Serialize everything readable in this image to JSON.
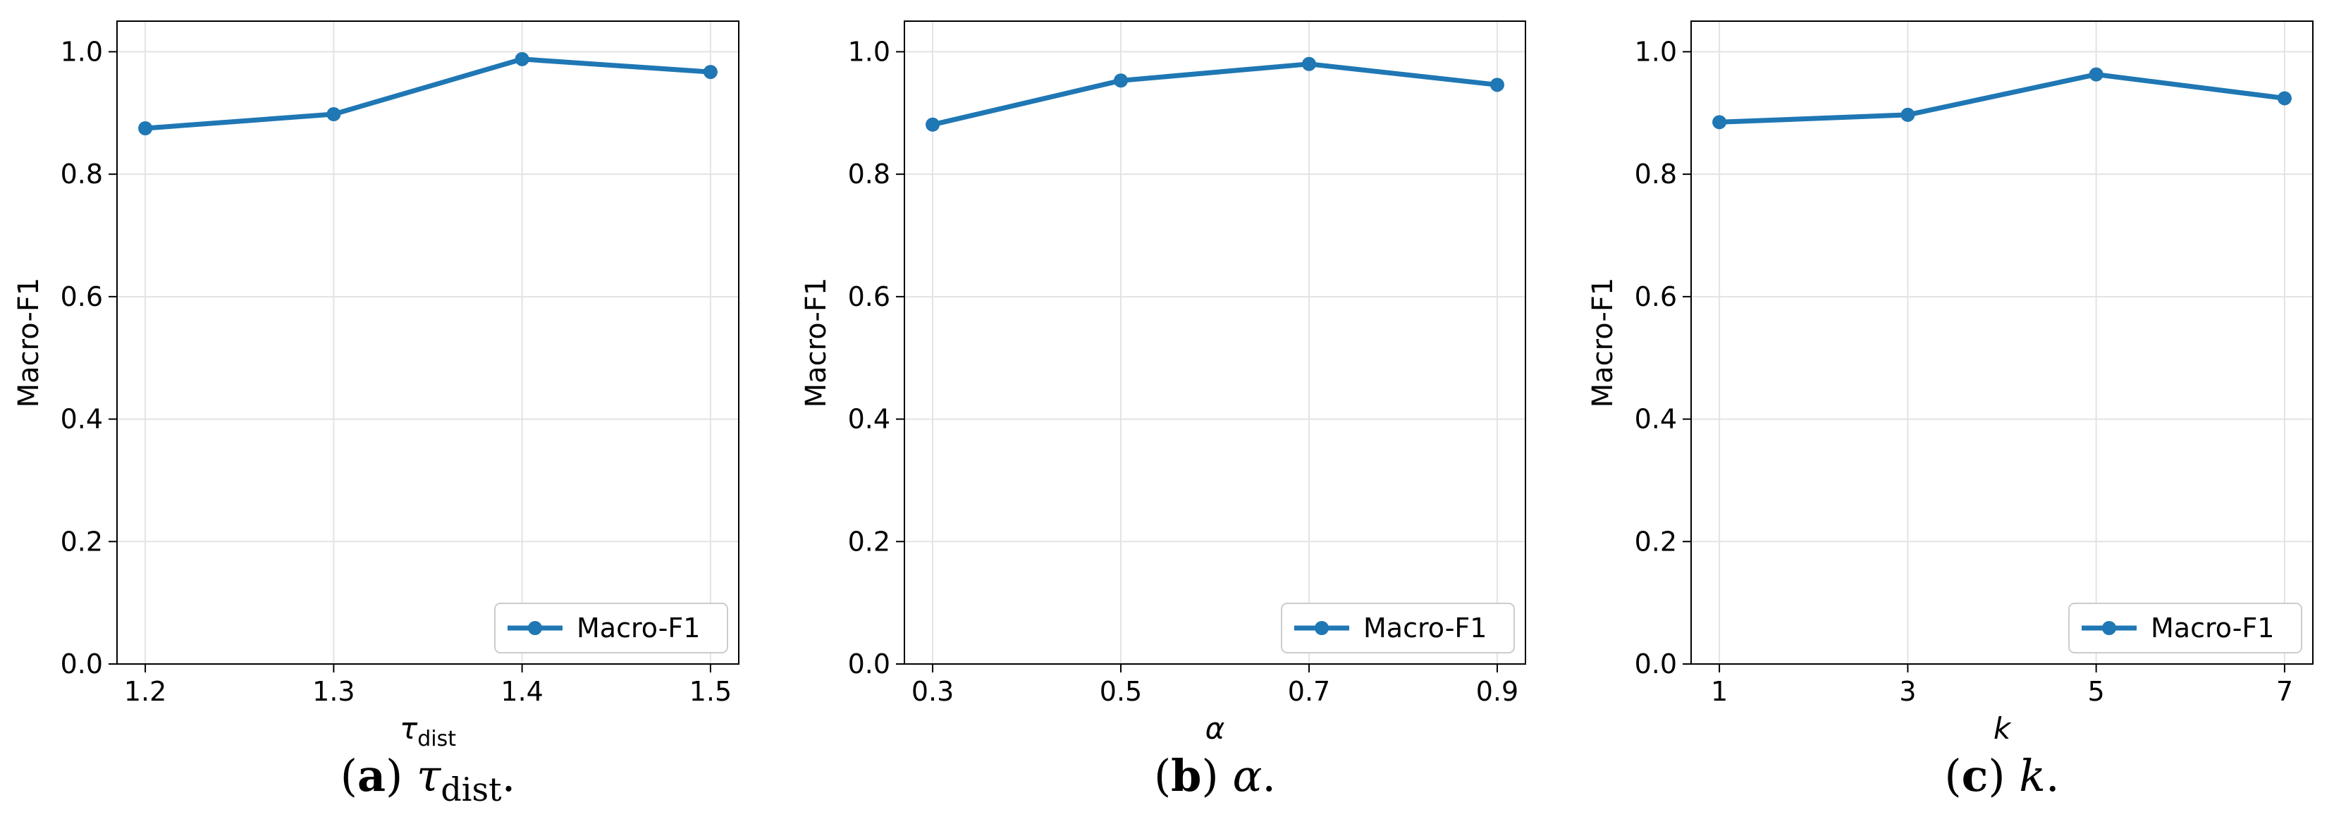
{
  "chart_data": [
    {
      "type": "line",
      "x": [
        1.2,
        1.3,
        1.4,
        1.5
      ],
      "xticks": [
        "1.2",
        "1.3",
        "1.4",
        "1.5"
      ],
      "series": [
        {
          "name": "Macro-F1",
          "values": [
            0.875,
            0.898,
            0.988,
            0.967
          ],
          "color": "#1f77b4"
        }
      ],
      "xlabel_main": "τ",
      "xlabel_sub": "dist",
      "ylabel": "Macro-F1",
      "ylim": [
        0,
        1.05
      ],
      "yticks": [
        "0.0",
        "0.2",
        "0.4",
        "0.6",
        "0.8",
        "1.0"
      ],
      "grid": true,
      "legend": "lower right",
      "caption": {
        "open": "(",
        "letter": "a",
        "close": ")",
        "symbol": "τ",
        "sub": "dist",
        "end": "."
      }
    },
    {
      "type": "line",
      "x": [
        0.3,
        0.5,
        0.7,
        0.9
      ],
      "xticks": [
        "0.3",
        "0.5",
        "0.7",
        "0.9"
      ],
      "series": [
        {
          "name": "Macro-F1",
          "values": [
            0.881,
            0.953,
            0.98,
            0.946
          ],
          "color": "#1f77b4"
        }
      ],
      "xlabel_main": "α",
      "xlabel_sub": "",
      "ylabel": "Macro-F1",
      "ylim": [
        0,
        1.05
      ],
      "yticks": [
        "0.0",
        "0.2",
        "0.4",
        "0.6",
        "0.8",
        "1.0"
      ],
      "grid": true,
      "legend": "lower right",
      "caption": {
        "open": "(",
        "letter": "b",
        "close": ")",
        "symbol": "α",
        "sub": "",
        "end": "."
      }
    },
    {
      "type": "line",
      "x": [
        1,
        3,
        5,
        7
      ],
      "xticks": [
        "1",
        "3",
        "5",
        "7"
      ],
      "series": [
        {
          "name": "Macro-F1",
          "values": [
            0.885,
            0.897,
            0.963,
            0.924
          ],
          "color": "#1f77b4"
        }
      ],
      "xlabel_main": "k",
      "xlabel_sub": "",
      "ylabel": "Macro-F1",
      "ylim": [
        0,
        1.05
      ],
      "yticks": [
        "0.0",
        "0.2",
        "0.4",
        "0.6",
        "0.8",
        "1.0"
      ],
      "grid": true,
      "legend": "lower right",
      "caption": {
        "open": "(",
        "letter": "c",
        "close": ")",
        "symbol": "k",
        "sub": "",
        "end": "."
      }
    }
  ]
}
